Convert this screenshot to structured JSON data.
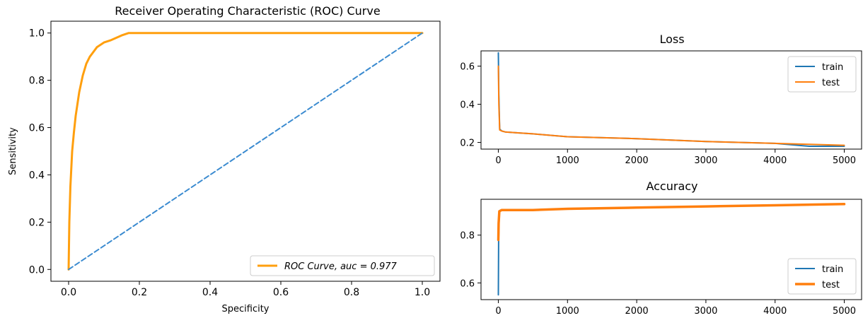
{
  "chart_data": [
    {
      "id": "roc",
      "type": "line",
      "title": "Receiver Operating Characteristic (ROC) Curve",
      "xlabel": "Specificity",
      "ylabel": "Sensitivity",
      "xlim": [
        -0.05,
        1.05
      ],
      "ylim": [
        -0.05,
        1.05
      ],
      "xticks": [
        0.0,
        0.2,
        0.4,
        0.6,
        0.8,
        1.0
      ],
      "yticks": [
        0.0,
        0.2,
        0.4,
        0.6,
        0.8,
        1.0
      ],
      "xtick_labels": [
        "0.0",
        "0.2",
        "0.4",
        "0.6",
        "0.8",
        "1.0"
      ],
      "ytick_labels": [
        "0.0",
        "0.2",
        "0.4",
        "0.6",
        "0.8",
        "1.0"
      ],
      "grid": false,
      "legend_position": "bottom-right",
      "series": [
        {
          "name": "ROC Curve, auc = 0.977",
          "color": "#ff9f0e",
          "style": "solid",
          "x": [
            0.0,
            0.002,
            0.005,
            0.01,
            0.015,
            0.02,
            0.03,
            0.04,
            0.05,
            0.06,
            0.08,
            0.1,
            0.12,
            0.15,
            0.17,
            0.2,
            0.5,
            1.0
          ],
          "y": [
            0.0,
            0.2,
            0.35,
            0.5,
            0.58,
            0.65,
            0.75,
            0.82,
            0.87,
            0.9,
            0.94,
            0.96,
            0.97,
            0.99,
            1.0,
            1.0,
            1.0,
            1.0
          ]
        },
        {
          "name": "",
          "color": "#3b8bd0",
          "style": "dashed",
          "x": [
            0.0,
            1.0
          ],
          "y": [
            0.0,
            1.0
          ]
        }
      ]
    },
    {
      "id": "loss",
      "type": "line",
      "title": "Loss",
      "xlabel": "",
      "ylabel": "",
      "xlim": [
        -250,
        5250
      ],
      "ylim": [
        0.165,
        0.68
      ],
      "xticks": [
        0,
        1000,
        2000,
        3000,
        4000,
        5000
      ],
      "yticks": [
        0.2,
        0.4,
        0.6
      ],
      "xtick_labels": [
        "0",
        "1000",
        "2000",
        "3000",
        "4000",
        "5000"
      ],
      "ytick_labels": [
        "0.2",
        "0.4",
        "0.6"
      ],
      "grid": false,
      "legend_position": "top-right",
      "series": [
        {
          "name": "train",
          "color": "#1f77b4",
          "x": [
            0,
            8,
            20,
            50,
            100,
            300,
            500,
            1000,
            2000,
            3000,
            4000,
            4500,
            5000
          ],
          "y": [
            0.67,
            0.45,
            0.27,
            0.26,
            0.255,
            0.25,
            0.245,
            0.23,
            0.22,
            0.205,
            0.195,
            0.18,
            0.18
          ]
        },
        {
          "name": "test",
          "color": "#ff7f0e",
          "x": [
            0,
            8,
            20,
            50,
            100,
            300,
            500,
            1000,
            2000,
            3000,
            4000,
            4500,
            5000
          ],
          "y": [
            0.6,
            0.4,
            0.265,
            0.26,
            0.255,
            0.25,
            0.245,
            0.23,
            0.22,
            0.205,
            0.195,
            0.19,
            0.185
          ]
        }
      ]
    },
    {
      "id": "accuracy",
      "type": "line",
      "title": "Accuracy",
      "xlabel": "",
      "ylabel": "",
      "xlim": [
        -250,
        5250
      ],
      "ylim": [
        0.53,
        0.95
      ],
      "xticks": [
        0,
        1000,
        2000,
        3000,
        4000,
        5000
      ],
      "yticks": [
        0.6,
        0.8
      ],
      "xtick_labels": [
        "0",
        "1000",
        "2000",
        "3000",
        "4000",
        "5000"
      ],
      "ytick_labels": [
        "0.6",
        "0.8"
      ],
      "grid": false,
      "legend_position": "bottom-right",
      "series": [
        {
          "name": "train",
          "color": "#1f77b4",
          "x": [
            0,
            5,
            15,
            50,
            500,
            1000,
            2000,
            3000,
            4000,
            5000
          ],
          "y": [
            0.55,
            0.78,
            0.9,
            0.905,
            0.905,
            0.91,
            0.915,
            0.92,
            0.925,
            0.93
          ]
        },
        {
          "name": "test",
          "color": "#ff7f0e",
          "x": [
            0,
            5,
            15,
            50,
            500,
            1000,
            2000,
            3000,
            4000,
            5000
          ],
          "y": [
            0.78,
            0.85,
            0.9,
            0.905,
            0.905,
            0.91,
            0.915,
            0.92,
            0.925,
            0.93
          ]
        }
      ]
    }
  ]
}
